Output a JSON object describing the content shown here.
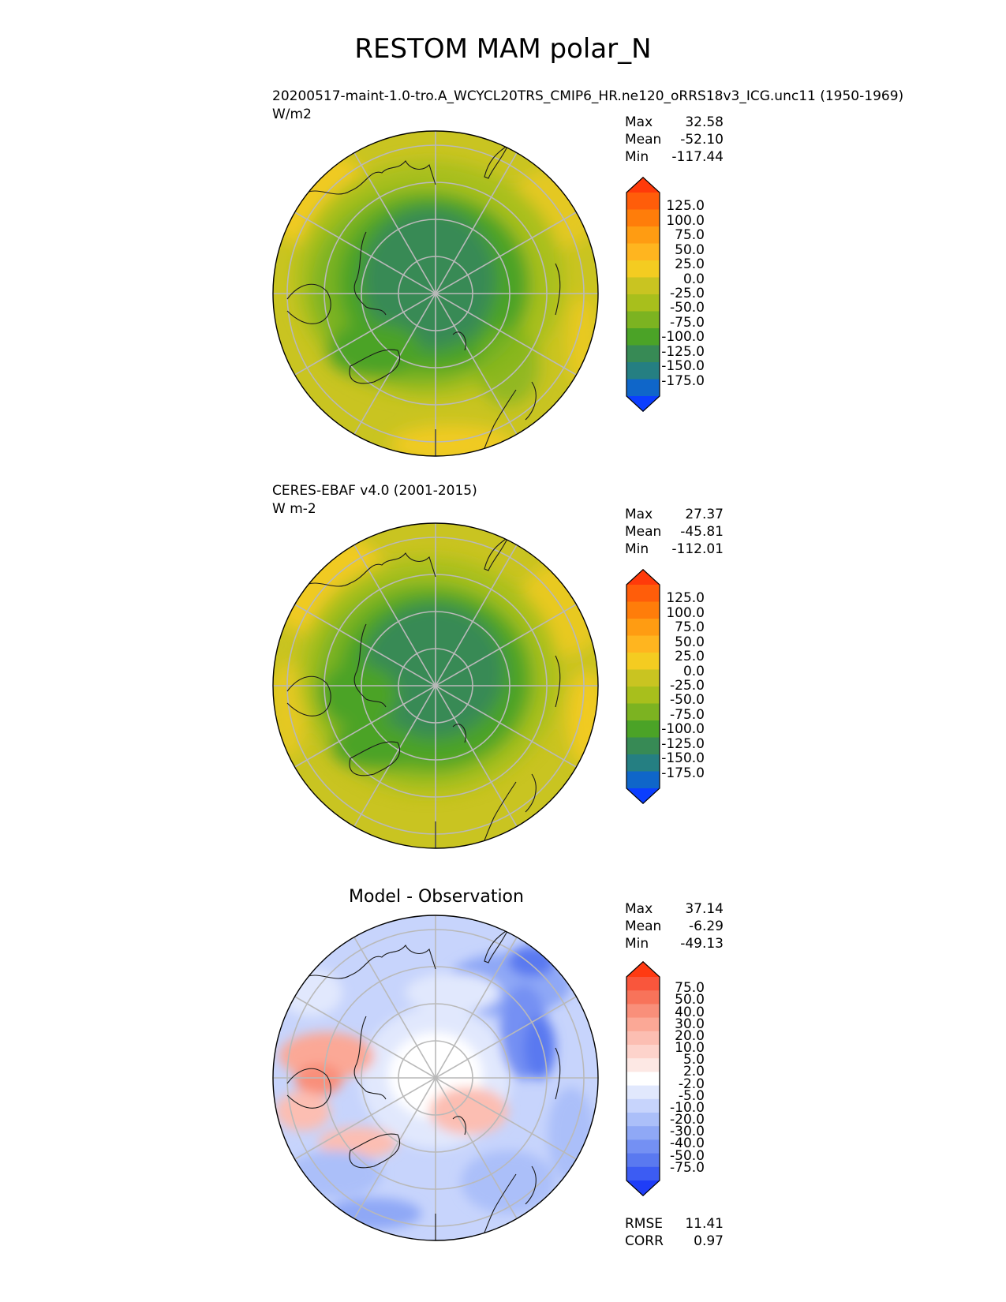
{
  "title": "RESTOM MAM polar_N",
  "panels": [
    {
      "id": "model",
      "subtitle": "20200517-maint-1.0-tro.A_WCYCL20TRS_CMIP6_HR.ne120_oRRS18v3_ICG.unc11 (1950-1969)",
      "units": "W/m2",
      "stats": [
        {
          "label": "Max",
          "value": "32.58"
        },
        {
          "label": "Mean",
          "value": "-52.10"
        },
        {
          "label": "Min",
          "value": "-117.44"
        }
      ]
    },
    {
      "id": "obs",
      "subtitle": "CERES-EBAF v4.0 (2001-2015)",
      "units": "W m-2",
      "stats": [
        {
          "label": "Max",
          "value": "27.37"
        },
        {
          "label": "Mean",
          "value": "-45.81"
        },
        {
          "label": "Min",
          "value": "-112.01"
        }
      ]
    },
    {
      "id": "diff",
      "heading": "Model - Observation",
      "stats": [
        {
          "label": "Max",
          "value": "37.14"
        },
        {
          "label": "Mean",
          "value": "-6.29"
        },
        {
          "label": "Min",
          "value": "-49.13"
        }
      ],
      "extra_stats": [
        {
          "label": "RMSE",
          "value": "11.41"
        },
        {
          "label": "CORR",
          "value": "0.97"
        }
      ]
    }
  ],
  "chart_data": [
    {
      "type": "heatmap",
      "projection": "north polar stereographic",
      "title": "20200517-maint-1.0-tro.A_WCYCL20TRS_CMIP6_HR.ne120_oRRS18v3_ICG.unc11 (1950-1969)",
      "units": "W/m2",
      "stats": {
        "max": 32.58,
        "mean": -52.1,
        "min": -117.44
      },
      "colorbar": {
        "labels": [
          "125.0",
          "100.0",
          "75.0",
          "50.0",
          "25.0",
          "0.0",
          "-25.0",
          "-50.0",
          "-75.0",
          "-100.0",
          "-125.0",
          "-150.0",
          "-175.0"
        ],
        "colors": [
          "#ff3a0a",
          "#ff5d0a",
          "#ff7d0a",
          "#ff9c12",
          "#ffb51f",
          "#f4cc21",
          "#c9c421",
          "#a8bf1c",
          "#7cb321",
          "#4ba327",
          "#378a55",
          "#257f82",
          "#0f66c9",
          "#0b3eff"
        ]
      }
    },
    {
      "type": "heatmap",
      "projection": "north polar stereographic",
      "title": "CERES-EBAF v4.0 (2001-2015)",
      "units": "W m-2",
      "stats": {
        "max": 27.37,
        "mean": -45.81,
        "min": -112.01
      },
      "colorbar": {
        "labels": [
          "125.0",
          "100.0",
          "75.0",
          "50.0",
          "25.0",
          "0.0",
          "-25.0",
          "-50.0",
          "-75.0",
          "-100.0",
          "-125.0",
          "-150.0",
          "-175.0"
        ],
        "colors": [
          "#ff3a0a",
          "#ff5d0a",
          "#ff7d0a",
          "#ff9c12",
          "#ffb51f",
          "#f4cc21",
          "#c9c421",
          "#a8bf1c",
          "#7cb321",
          "#4ba327",
          "#378a55",
          "#257f82",
          "#0f66c9",
          "#0b3eff"
        ]
      }
    },
    {
      "type": "heatmap",
      "projection": "north polar stereographic",
      "title": "Model - Observation",
      "stats": {
        "max": 37.14,
        "mean": -6.29,
        "min": -49.13,
        "rmse": 11.41,
        "corr": 0.97
      },
      "colorbar": {
        "labels": [
          "75.0",
          "50.0",
          "40.0",
          "30.0",
          "20.0",
          "10.0",
          "5.0",
          "2.0",
          "-2.0",
          "-5.0",
          "-10.0",
          "-20.0",
          "-30.0",
          "-40.0",
          "-50.0",
          "-75.0"
        ],
        "colors": [
          "#ff3a12",
          "#f9563c",
          "#f8735a",
          "#f98f7a",
          "#fba896",
          "#fcbeb2",
          "#fdd3cb",
          "#fde8e4",
          "#ffffff",
          "#e1e8fd",
          "#c7d4fc",
          "#abbff9",
          "#8fa8f6",
          "#7490f3",
          "#5a79f0",
          "#3c5cf3",
          "#1f3df7"
        ]
      }
    }
  ]
}
